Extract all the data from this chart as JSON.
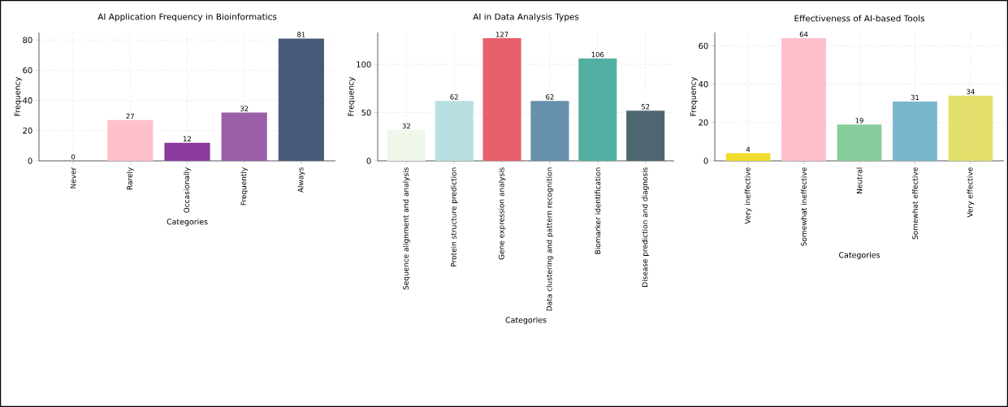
{
  "chart_data": [
    {
      "type": "bar",
      "title": "AI Application Frequency in Bioinformatics",
      "xlabel": "Categories",
      "ylabel": "Frequency",
      "categories": [
        "Never",
        "Rarely",
        "Occasionally",
        "Frequently",
        "Always"
      ],
      "values": [
        0,
        27,
        12,
        32,
        81
      ],
      "colors": [
        "#7f7fbf",
        "#ffc0cb",
        "#8b3a9e",
        "#9b5fa8",
        "#475a78"
      ],
      "ylim": [
        0,
        85
      ],
      "yticks": [
        0,
        20,
        40,
        60,
        80
      ],
      "grid": true,
      "data_labels": true
    },
    {
      "type": "bar",
      "title": "AI in Data Analysis Types",
      "xlabel": "Categories",
      "ylabel": "Frequency",
      "categories": [
        "Sequence alignment and analysis",
        "Protein structure prediction",
        "Gene expression analysis",
        "Data clustering and pattern recognition",
        "Biomarker identification",
        "Disease prediction and diagnosis"
      ],
      "values": [
        32,
        62,
        127,
        62,
        106,
        52
      ],
      "colors": [
        "#eef7ea",
        "#b8e0e2",
        "#e8606b",
        "#6690ac",
        "#52b0a3",
        "#4e6670"
      ],
      "ylim": [
        0,
        133
      ],
      "yticks": [
        0,
        50,
        100
      ],
      "grid": true,
      "data_labels": true
    },
    {
      "type": "bar",
      "title": "Effectiveness of AI-based Tools",
      "xlabel": "Categories",
      "ylabel": "Frequency",
      "categories": [
        "Very ineffective",
        "Somewhat ineffective",
        "Neutral",
        "Somewhat effective",
        "Very effective"
      ],
      "values": [
        4,
        64,
        19,
        31,
        34
      ],
      "colors": [
        "#f0dc2a",
        "#ffc0cb",
        "#88cc9b",
        "#7ab6cc",
        "#e3e06e"
      ],
      "ylim": [
        0,
        67
      ],
      "yticks": [
        0,
        20,
        40,
        60
      ],
      "grid": true,
      "data_labels": true
    }
  ]
}
